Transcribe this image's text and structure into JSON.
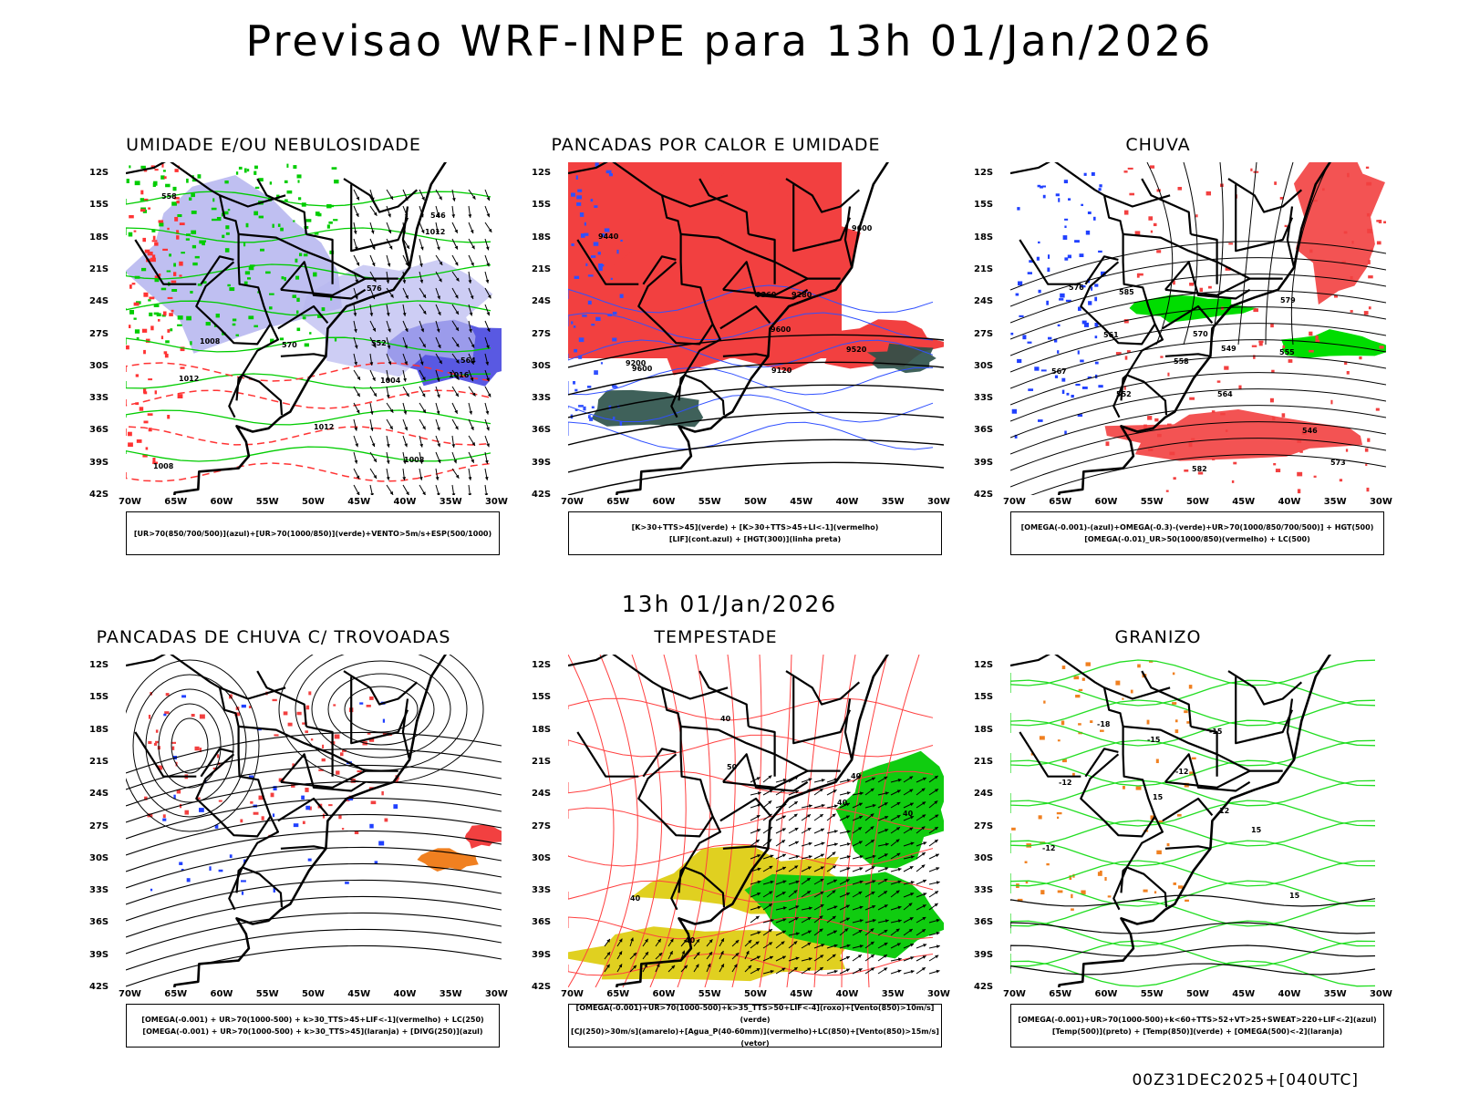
{
  "header": {
    "title": "Previsao WRF-INPE  para 13h 01/Jan/2026"
  },
  "mid": {
    "time_label": "13h 01/Jan/2026"
  },
  "footer": {
    "run_label": "00Z31DEC2025+[040UTC]"
  },
  "axes": {
    "lat_labels": [
      "12S",
      "15S",
      "18S",
      "21S",
      "24S",
      "27S",
      "30S",
      "33S",
      "36S",
      "39S",
      "42S"
    ],
    "lon_labels": [
      "70W",
      "65W",
      "60W",
      "55W",
      "50W",
      "45W",
      "40W",
      "35W",
      "30W"
    ]
  },
  "panels": [
    {
      "title": "UMIDADE E/OU NEBULOSIDADE",
      "legend": [
        "[UR>70(850/700/500)](azul)+[UR>70(1000/850)](verde)+VENTO>5m/s+ESP(500/1000)"
      ],
      "contour_labels": [
        "1012",
        "1012",
        "1016",
        "1008",
        "1008",
        "1012",
        "1008",
        "1004",
        "576",
        "570",
        "564",
        "558",
        "552",
        "546"
      ],
      "colors": {
        "shade1": "#b8b8f0",
        "shade2": "#5050e0",
        "green": "#00cc00",
        "red": "#ff3333"
      }
    },
    {
      "title": "PANCADAS POR CALOR E UMIDADE",
      "legend": [
        "[K>30+TTS>45](verde) + [K>30+TTS>45+LI<-1](vermelho)",
        "[LIF](cont.azul) + [HGT(300)](linha preta)"
      ],
      "contour_labels": [
        "9600",
        "9600",
        "9520",
        "9440",
        "9360",
        "9280",
        "9200",
        "9120",
        "9600"
      ],
      "colors": {
        "shade1": "#f24040",
        "shade2": "#2a5048",
        "blue": "#3050ff"
      }
    },
    {
      "title": "CHUVA",
      "legend": [
        "[OMEGA(-0.001)-(azul)+OMEGA(-0.3)-(verde)+UR>70(1000/850/700/500)] + HGT(500)",
        "[OMEGA(-0.01)_UR>50(1000/850)(vermelho) + LC(500)"
      ],
      "contour_labels": [
        "585",
        "582",
        "579",
        "576",
        "573",
        "570",
        "567",
        "564",
        "561",
        "558",
        "555",
        "552",
        "549",
        "546"
      ],
      "colors": {
        "red": "#f24040",
        "green": "#00dd00",
        "blue": "#2040ff"
      }
    },
    {
      "title": "PANCADAS DE CHUVA C/ TROVOADAS",
      "legend": [
        "[OMEGA(-0.001) + UR>70(1000-500) + k>30_TTS>45+LIF<-1](vermelho) + LC(250)",
        "[OMEGA(-0.001) + UR>70(1000-500) + k>30_TTS>45](laranja) + [DIVG(250)](azul)"
      ],
      "contour_labels": [],
      "colors": {
        "red": "#f24040",
        "orange": "#f08020",
        "blue": "#2040ff"
      }
    },
    {
      "title": "TEMPESTADE",
      "legend": [
        "[OMEGA(-0.001)+UR>70(1000-500)+k>35_TTS>50+LIF<-4](roxo)+[Vento(850)>10m/s](verde)",
        "[CJ(250)>30m/s](amarelo)+[Agua_P(40-60mm)](vermelho)+LC(850)+[Vento(850)>15m/s](vetor)"
      ],
      "contour_labels": [
        "40",
        "40",
        "40",
        "50",
        "40",
        "40",
        "40"
      ],
      "colors": {
        "green": "#10cc10",
        "yellow": "#e0d020",
        "red": "#ff4040"
      }
    },
    {
      "title": "GRANIZO",
      "legend": [
        "[OMEGA(-0.001)+UR>70(1000-500)+k<60+TTS>52+VT>25+SWEAT>220+LIF<-2](azul)",
        "[Temp(500)](preto) + [Temp(850)](verde) + [OMEGA(500)<-2](laranja)"
      ],
      "contour_labels": [
        "-12",
        "-12",
        "-12",
        "-15",
        "-15",
        "-18",
        "15",
        "15",
        "12",
        "15"
      ],
      "colors": {
        "green": "#22dd22",
        "orange": "#f08020"
      }
    }
  ]
}
